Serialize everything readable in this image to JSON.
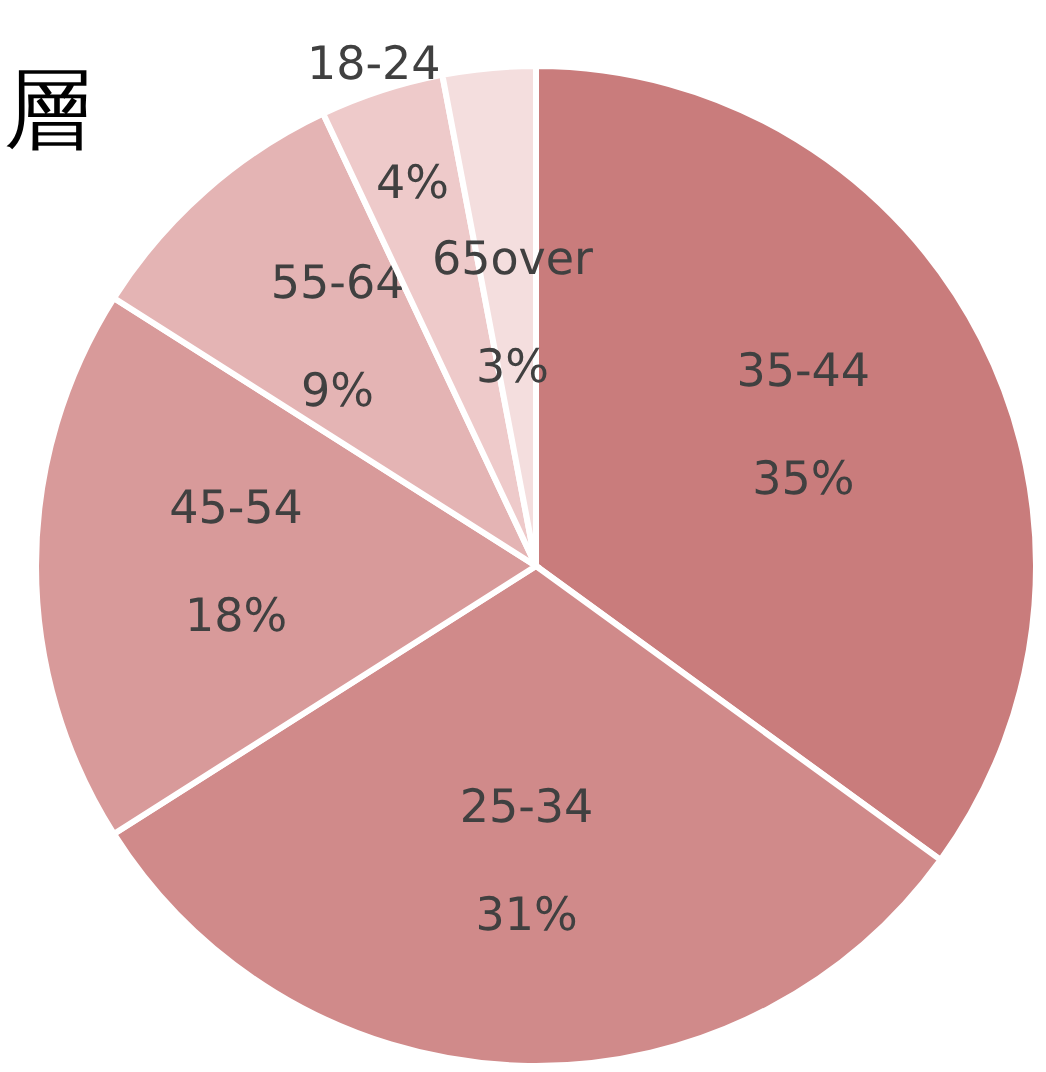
{
  "chart_data": {
    "type": "pie",
    "title": "層",
    "categories": [
      "35-44",
      "25-34",
      "45-54",
      "55-64",
      "18-24",
      "65over"
    ],
    "values": [
      35,
      31,
      18,
      9,
      4,
      3
    ],
    "value_labels": [
      "35%",
      "31%",
      "18%",
      "9%",
      "4%",
      "3%"
    ],
    "colors": [
      "#c97c7c",
      "#d08a8a",
      "#d89a9a",
      "#e4b4b4",
      "#eecaca",
      "#f4dede"
    ],
    "legend": false
  }
}
